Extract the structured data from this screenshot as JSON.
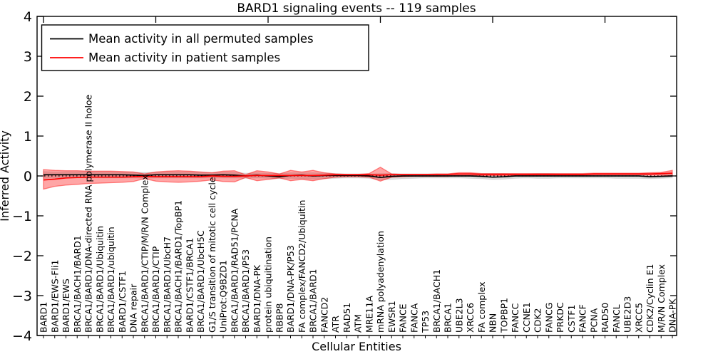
{
  "chart_data": {
    "type": "line",
    "title": "BARD1 signaling events -- 119 samples",
    "xlabel": "Cellular Entities",
    "ylabel": "Inferred Activity",
    "ylim": [
      -4,
      4
    ],
    "yticks": [
      4,
      3,
      2,
      1,
      0,
      -1,
      -2,
      -3,
      -4
    ],
    "ytick_labels": [
      "4",
      "3",
      "2",
      "1",
      "0",
      "−1",
      "−2",
      "−3",
      "−4"
    ],
    "xticks_major_top": [
      0,
      10,
      20,
      30,
      40,
      50
    ],
    "grid": false,
    "zero_line": {
      "value": 0,
      "style": "dotted",
      "color": "#000000"
    },
    "legend": {
      "position": "upper left",
      "entries": [
        {
          "label": "Mean activity in all permuted samples",
          "color": "#000000"
        },
        {
          "label": "Mean activity in patient samples",
          "color": "#ff0000"
        }
      ]
    },
    "categories": [
      "BARD1",
      "BARD1/EWS-Fli1",
      "BARD1/EWS",
      "BRCA1/BACH1/BARD1",
      "BRCA1/BARD1/DNA-directed RNA polymerase II holoe",
      "BRCA1/BARD1/Ubiquitin",
      "BRCA1/BARD1/ubiquitin",
      "BARD1/CSTF1",
      "DNA repair",
      "BRCA1/BARD1/CTIP/M/R/N Complex",
      "BRCA1/BARD1/CTIP",
      "BRCA1/BARD1/UbcH7",
      "BRCA1/BACH1/BARD1/TopBP1",
      "BARD1/CSTF1/BRCA1",
      "BRCA1/BARD1/UbcH5C",
      "G1/S transition of mitotic cell cycle",
      "UniProt:Q9BZD1",
      "BRCA1/BARD1/RAD51/PCNA",
      "BRCA1/BARD1/P53",
      "BARD1/DNA-PK",
      "protein ubiquitination",
      "RBBP8",
      "BARD1/DNA-PK/P53",
      "FA complex/FANCD2/Ubiquitin",
      "BRCA1/BARD1",
      "FANCD2",
      "ATR",
      "RAD51",
      "ATM",
      "MRE11A",
      "mRNA polyadenylation",
      "EWSR1",
      "FANCE",
      "FANCA",
      "TP53",
      "BRCA1/BACH1",
      "BRCA1",
      "UBE2L3",
      "XRCC6",
      "FA complex",
      "NBN",
      "TOPBP1",
      "FANCC",
      "CCNE1",
      "CDK2",
      "FANCG",
      "PRKDC",
      "CSTF1",
      "FANCF",
      "PCNA",
      "RAD50",
      "FANCL",
      "UBE2D3",
      "XRCC5",
      "CDK2/Cyclin E1",
      "M/R/N Complex",
      "DNA-PK"
    ],
    "series": [
      {
        "name": "Mean activity in all permuted samples",
        "kind": "line",
        "color": "#000000",
        "values": [
          0.03,
          0.03,
          0.03,
          0.03,
          0.03,
          0.03,
          0.03,
          0.03,
          0.02,
          0.01,
          0.03,
          0.03,
          0.03,
          0.03,
          0.02,
          0.02,
          0.03,
          0.02,
          0.0,
          0.02,
          0.0,
          -0.02,
          0.01,
          0.02,
          0.0,
          0.01,
          0.01,
          0.01,
          0.01,
          0.0,
          -0.04,
          -0.01,
          0.0,
          0.0,
          0.0,
          0.0,
          0.0,
          0.0,
          0.0,
          -0.01,
          -0.03,
          -0.02,
          0.0,
          0.0,
          0.0,
          0.0,
          0.0,
          0.0,
          0.0,
          0.0,
          0.0,
          0.0,
          0.0,
          0.0,
          -0.02,
          -0.01,
          0.0
        ]
      },
      {
        "name": "Mean activity in patient samples",
        "kind": "line",
        "color": "#ff0000",
        "values": [
          -0.1,
          -0.08,
          -0.05,
          -0.04,
          -0.03,
          -0.03,
          -0.03,
          -0.03,
          -0.02,
          -0.01,
          -0.02,
          -0.02,
          -0.02,
          -0.02,
          -0.02,
          0.0,
          -0.01,
          -0.01,
          0.0,
          0.01,
          0.01,
          0.01,
          0.01,
          0.01,
          0.01,
          0.02,
          0.03,
          0.03,
          0.03,
          0.03,
          0.02,
          0.03,
          0.04,
          0.04,
          0.04,
          0.04,
          0.04,
          0.05,
          0.05,
          0.04,
          0.04,
          0.04,
          0.04,
          0.04,
          0.04,
          0.04,
          0.04,
          0.04,
          0.04,
          0.05,
          0.05,
          0.05,
          0.05,
          0.05,
          0.05,
          0.06,
          0.07
        ]
      },
      {
        "name": "Permuted samples spread band",
        "kind": "band",
        "fill": "rgba(0,0,0,0.13)",
        "edge": "rgba(0,0,0,0.08)",
        "upper": [
          0.11,
          0.1,
          0.1,
          0.1,
          0.1,
          0.1,
          0.1,
          0.09,
          0.09,
          0.09,
          0.09,
          0.1,
          0.1,
          0.1,
          0.09,
          0.08,
          0.09,
          0.09,
          0.07,
          0.08,
          0.07,
          0.06,
          0.08,
          0.08,
          0.08,
          0.07,
          0.06,
          0.05,
          0.05,
          0.05,
          0.06,
          0.06,
          0.05,
          0.05,
          0.05,
          0.05,
          0.05,
          0.05,
          0.06,
          0.06,
          0.06,
          0.06,
          0.05,
          0.05,
          0.06,
          0.06,
          0.05,
          0.05,
          0.05,
          0.05,
          0.05,
          0.06,
          0.06,
          0.06,
          0.07,
          0.07,
          0.07
        ],
        "lower": [
          -0.06,
          -0.05,
          -0.05,
          -0.05,
          -0.05,
          -0.05,
          -0.05,
          -0.05,
          -0.05,
          -0.06,
          -0.05,
          -0.05,
          -0.05,
          -0.05,
          -0.05,
          -0.05,
          -0.05,
          -0.05,
          -0.06,
          -0.05,
          -0.06,
          -0.07,
          -0.06,
          -0.07,
          -0.08,
          -0.07,
          -0.06,
          -0.05,
          -0.05,
          -0.06,
          -0.1,
          -0.09,
          -0.07,
          -0.06,
          -0.05,
          -0.05,
          -0.05,
          -0.05,
          -0.06,
          -0.07,
          -0.09,
          -0.08,
          -0.06,
          -0.05,
          -0.06,
          -0.06,
          -0.05,
          -0.05,
          -0.05,
          -0.05,
          -0.05,
          -0.06,
          -0.06,
          -0.06,
          -0.07,
          -0.06,
          -0.05
        ]
      },
      {
        "name": "Patient samples spread band",
        "kind": "band",
        "fill": "rgba(255,0,0,0.35)",
        "edge": "rgba(255,0,0,0.45)",
        "upper": [
          0.16,
          0.14,
          0.13,
          0.13,
          0.12,
          0.12,
          0.12,
          0.11,
          0.1,
          0.05,
          0.1,
          0.12,
          0.13,
          0.12,
          0.1,
          0.08,
          0.12,
          0.13,
          0.03,
          0.13,
          0.1,
          0.05,
          0.14,
          0.1,
          0.14,
          0.08,
          0.05,
          0.04,
          0.04,
          0.06,
          0.22,
          0.05,
          0.04,
          0.04,
          0.04,
          0.05,
          0.05,
          0.08,
          0.08,
          0.06,
          0.06,
          0.06,
          0.06,
          0.06,
          0.06,
          0.06,
          0.06,
          0.06,
          0.06,
          0.07,
          0.07,
          0.07,
          0.07,
          0.07,
          0.08,
          0.09,
          0.14
        ],
        "lower": [
          -0.33,
          -0.26,
          -0.23,
          -0.21,
          -0.19,
          -0.18,
          -0.17,
          -0.16,
          -0.14,
          -0.07,
          -0.13,
          -0.15,
          -0.16,
          -0.15,
          -0.13,
          -0.1,
          -0.14,
          -0.15,
          -0.04,
          -0.12,
          -0.09,
          -0.05,
          -0.12,
          -0.09,
          -0.12,
          -0.07,
          -0.03,
          -0.02,
          -0.02,
          -0.03,
          -0.13,
          -0.03,
          -0.02,
          -0.01,
          -0.01,
          -0.01,
          -0.01,
          0.01,
          0.01,
          0.01,
          0.01,
          0.01,
          0.01,
          0.01,
          0.02,
          0.02,
          0.02,
          0.02,
          0.02,
          0.03,
          0.03,
          0.03,
          0.03,
          0.03,
          0.02,
          0.02,
          0.0
        ]
      }
    ]
  }
}
